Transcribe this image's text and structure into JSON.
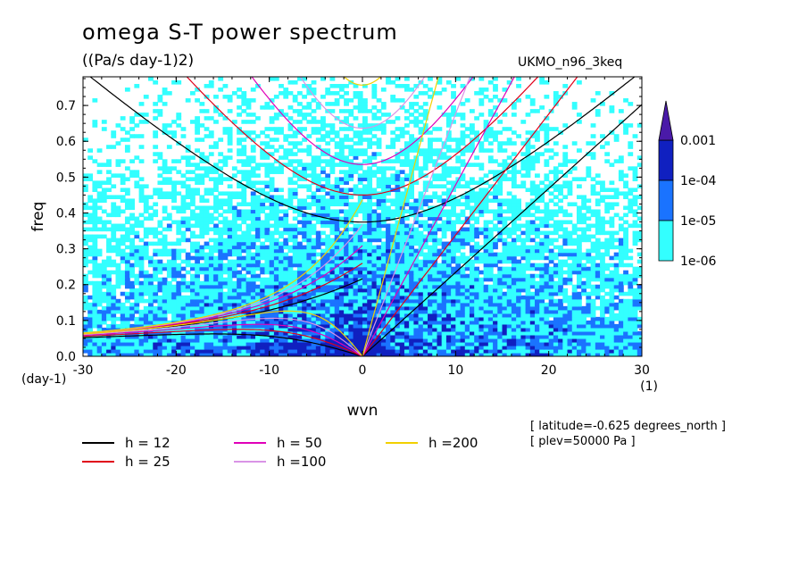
{
  "header": {
    "title": "omega S-T power spectrum",
    "units": "((Pa/s day-1)2)",
    "dataset": "UKMO_n96_3keq"
  },
  "notes": [
    "[ latitude=-0.625 degrees_north ]",
    "[ plev=50000 Pa ]"
  ],
  "legend": [
    {
      "label": "h = 12",
      "color": "#000000"
    },
    {
      "label": "h = 25",
      "color": "#e0001a"
    },
    {
      "label": "h = 50",
      "color": "#e000b8"
    },
    {
      "label": "h =100",
      "color": "#d994e6"
    },
    {
      "label": "h =200",
      "color": "#f2d000"
    }
  ],
  "chart_data": {
    "type": "heatmap",
    "title": "omega S-T power spectrum",
    "subtitle": "((Pa/s day-1)2)",
    "xlabel": "wvn",
    "ylabel": "freq",
    "x_unit_label": "(1)",
    "y_unit_label": "(day-1)",
    "xlim": [
      -30,
      30
    ],
    "ylim": [
      0,
      0.78
    ],
    "x_ticks": [
      "-30",
      "-20",
      "-10",
      "0",
      "10",
      "20",
      "30"
    ],
    "x_tick_values": [
      -30,
      -20,
      -10,
      0,
      10,
      20,
      30
    ],
    "y_ticks": [
      "0.0",
      "0.1",
      "0.2",
      "0.3",
      "0.4",
      "0.5",
      "0.6",
      "0.7"
    ],
    "y_tick_values": [
      0,
      0.1,
      0.2,
      0.3,
      0.4,
      0.5,
      0.6,
      0.7
    ],
    "colorbar": {
      "levels": [
        "1e-06",
        "1e-05",
        "1e-04",
        "0.001"
      ],
      "colors": [
        "#33ffff",
        "#1a73ff",
        "#1020c0",
        "#4a1aa8"
      ]
    },
    "dispersion_curves": [
      {
        "h": 12,
        "color": "#000000"
      },
      {
        "h": 25,
        "color": "#e0001a"
      },
      {
        "h": 50,
        "color": "#e000b8"
      },
      {
        "h": 100,
        "color": "#d994e6"
      },
      {
        "h": 200,
        "color": "#f2d000"
      }
    ]
  }
}
